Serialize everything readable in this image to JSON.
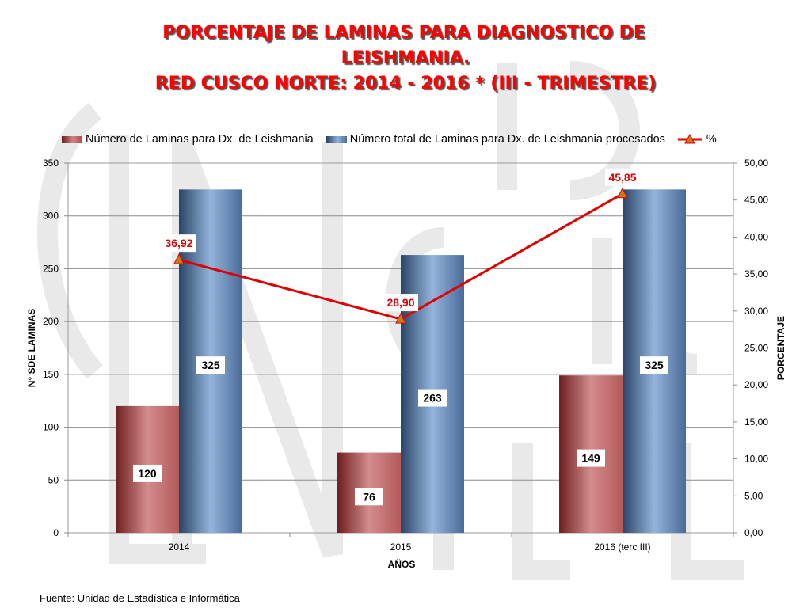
{
  "title": {
    "line1": "PORCENTAJE DE LAMINAS PARA DIAGNOSTICO DE",
    "line2": "LEISHMANIA.",
    "line3": "RED CUSCO NORTE: 2014 - 2016 * (III - TRIMESTRE)"
  },
  "footer": "Fuente: Unidad de Estadística e Informática",
  "colors": {
    "title": "#ff0000",
    "series_red": "#c97474",
    "series_blue": "#7f9fc8",
    "line": "#e00000",
    "marker": "#c8781e"
  },
  "chart_data": {
    "type": "bar",
    "categories": [
      "2014",
      "2015",
      "2016 (terc III)"
    ],
    "series": [
      {
        "name": "Número de Laminas para Dx. de Leishmania",
        "type": "bar",
        "axis": "left",
        "values": [
          120,
          76,
          149
        ],
        "labels": [
          "120",
          "76",
          "149"
        ]
      },
      {
        "name": "Número total de Laminas para Dx. de Leishmania procesados",
        "type": "bar",
        "axis": "left",
        "values": [
          325,
          263,
          325
        ],
        "labels": [
          "325",
          "263",
          "325"
        ]
      },
      {
        "name": "%",
        "type": "line",
        "axis": "right",
        "values": [
          36.92,
          28.9,
          45.85
        ],
        "labels": [
          "36,92",
          "28,90",
          "45,85"
        ]
      }
    ],
    "xlabel": "AÑOS",
    "ylabel": "N° SDE LAMINAS",
    "y2label": "PORCENTAJE",
    "ylim": [
      0,
      350
    ],
    "y2lim": [
      0,
      50
    ],
    "yticks": [
      "0",
      "50",
      "100",
      "150",
      "200",
      "250",
      "300",
      "350"
    ],
    "y2ticks": [
      "0,00",
      "5,00",
      "10,00",
      "15,00",
      "20,00",
      "25,00",
      "30,00",
      "35,00",
      "40,00",
      "45,00",
      "50,00"
    ],
    "grid": true,
    "legend": "top"
  }
}
